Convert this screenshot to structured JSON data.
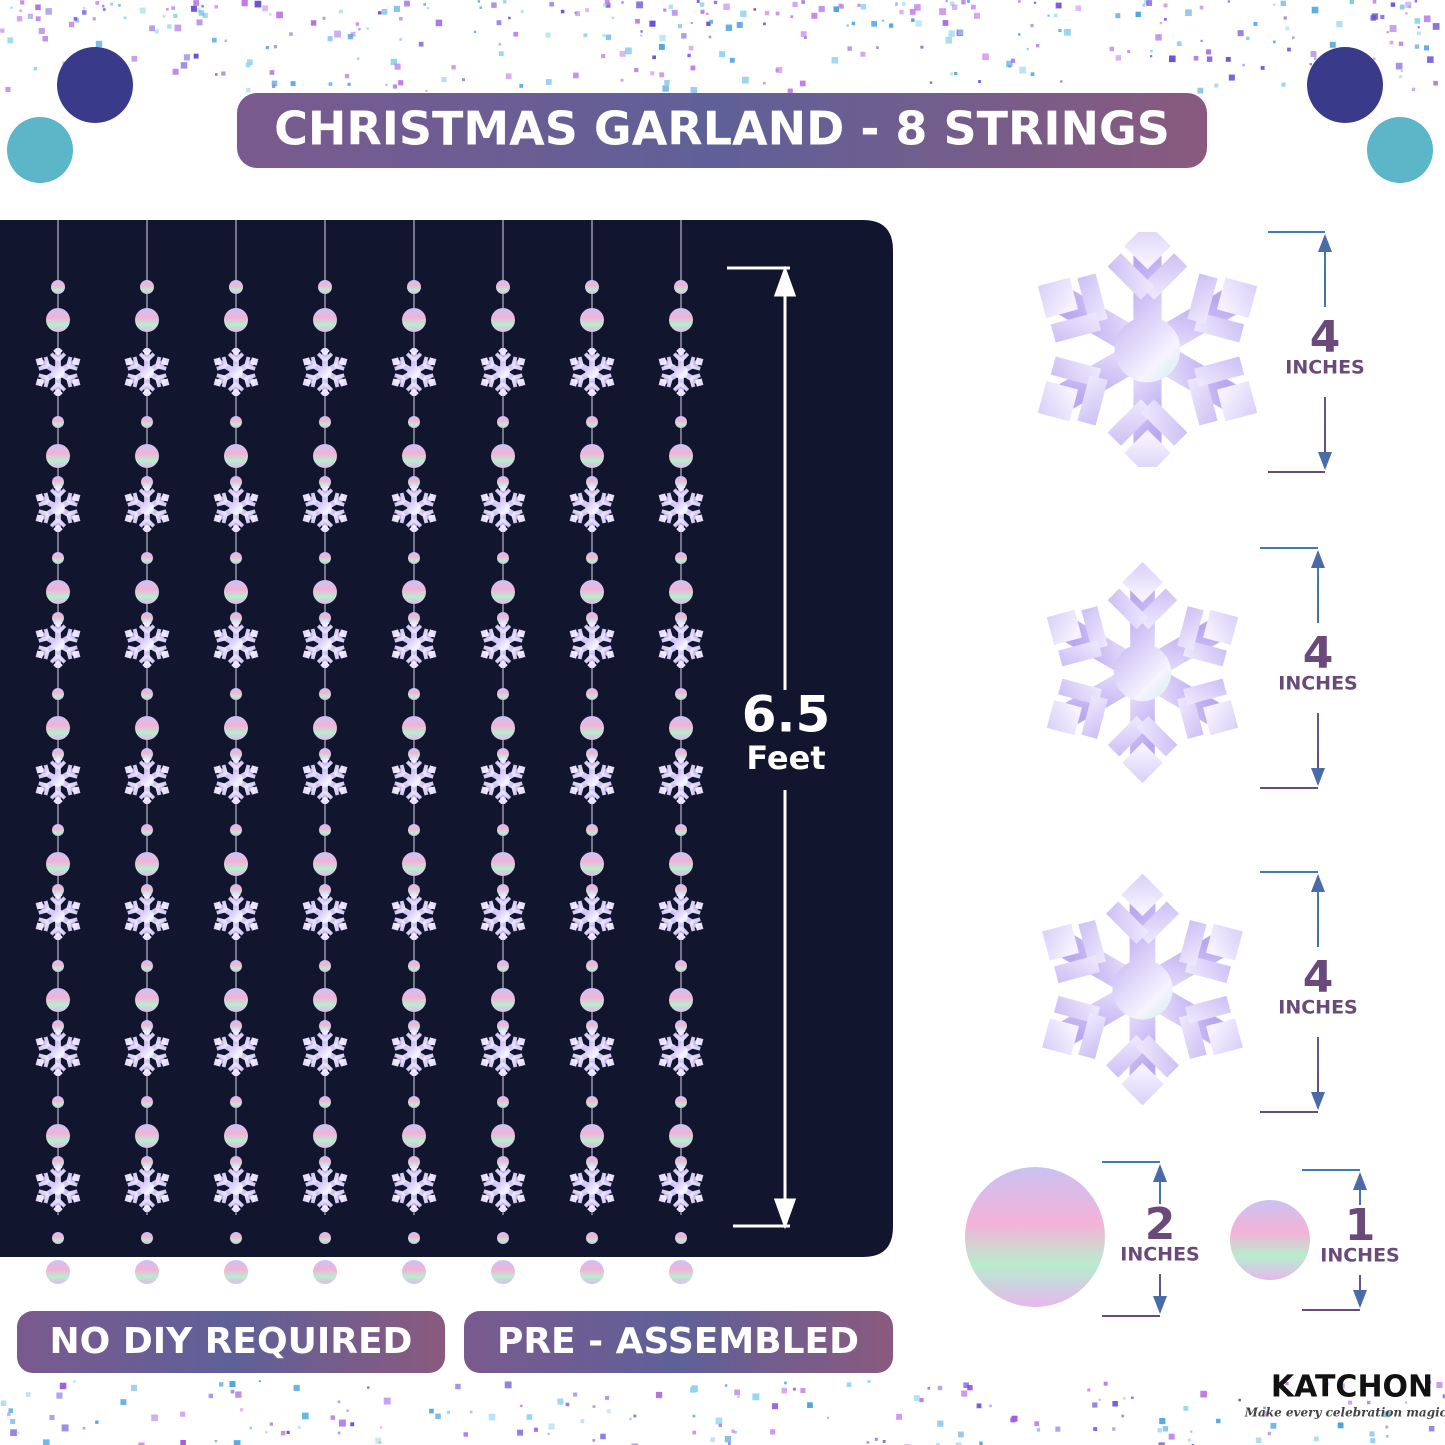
{
  "header": {
    "title": "CHRISTMAS GARLAND - 8 STRINGS"
  },
  "length": {
    "value": "6.5",
    "unit": "Feet"
  },
  "sizes": [
    {
      "value": "4",
      "unit": "INCHES"
    },
    {
      "value": "4",
      "unit": "INCHES"
    },
    {
      "value": "4",
      "unit": "INCHES"
    },
    {
      "value": "2",
      "unit": "INCHES"
    },
    {
      "value": "1",
      "unit": "INCHES"
    }
  ],
  "badges": [
    "NO DIY REQUIRED",
    "PRE - ASSEMBLED"
  ],
  "brand": {
    "name": "KATCHON",
    "tagline": "Make every celebration magical"
  }
}
